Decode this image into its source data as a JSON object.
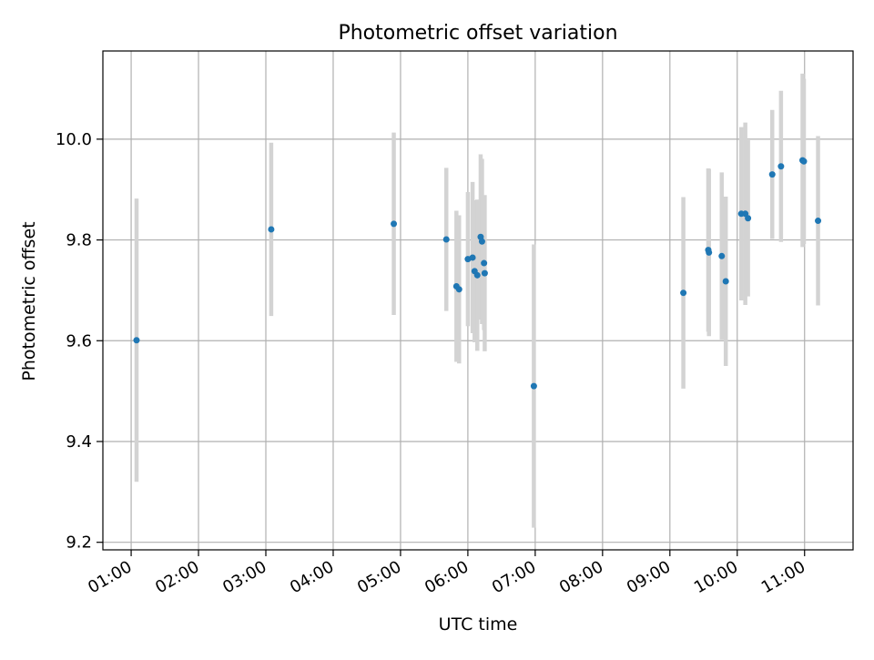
{
  "chart_data": {
    "type": "scatter",
    "title": "Photometric offset variation",
    "xlabel": "UTC time",
    "ylabel": "Photometric offset",
    "xlim": [
      0.58,
      11.72
    ],
    "ylim": [
      9.185,
      10.175
    ],
    "grid": true,
    "x_ticks": [
      1,
      2,
      3,
      4,
      5,
      6,
      7,
      8,
      9,
      10,
      11
    ],
    "x_tick_labels": [
      "01:00",
      "02:00",
      "03:00",
      "04:00",
      "05:00",
      "06:00",
      "07:00",
      "08:00",
      "09:00",
      "10:00",
      "11:00"
    ],
    "y_ticks": [
      9.2,
      9.4,
      9.6,
      9.8,
      10.0
    ],
    "y_tick_labels": [
      "9.2",
      "9.4",
      "9.6",
      "9.8",
      "10.0"
    ],
    "point_color": "#1f77b4",
    "errorbar_color": "#d3d3d3",
    "points": [
      {
        "x": 1.08,
        "y": 9.601,
        "err": 0.281
      },
      {
        "x": 3.08,
        "y": 9.821,
        "err": 0.172
      },
      {
        "x": 4.9,
        "y": 9.832,
        "err": 0.181
      },
      {
        "x": 5.68,
        "y": 9.801,
        "err": 0.142
      },
      {
        "x": 5.83,
        "y": 9.708,
        "err": 0.15
      },
      {
        "x": 5.87,
        "y": 9.702,
        "err": 0.147
      },
      {
        "x": 6.0,
        "y": 9.762,
        "err": 0.133
      },
      {
        "x": 6.07,
        "y": 9.765,
        "err": 0.15
      },
      {
        "x": 6.1,
        "y": 9.738,
        "err": 0.141
      },
      {
        "x": 6.14,
        "y": 9.73,
        "err": 0.15
      },
      {
        "x": 6.19,
        "y": 9.806,
        "err": 0.164
      },
      {
        "x": 6.21,
        "y": 9.797,
        "err": 0.164
      },
      {
        "x": 6.24,
        "y": 9.754,
        "err": 0.133
      },
      {
        "x": 6.25,
        "y": 9.734,
        "err": 0.155
      },
      {
        "x": 6.98,
        "y": 9.51,
        "err": 0.281
      },
      {
        "x": 9.2,
        "y": 9.695,
        "err": 0.19
      },
      {
        "x": 9.57,
        "y": 9.78,
        "err": 0.162
      },
      {
        "x": 9.58,
        "y": 9.775,
        "err": 0.166
      },
      {
        "x": 9.77,
        "y": 9.768,
        "err": 0.166
      },
      {
        "x": 9.83,
        "y": 9.718,
        "err": 0.168
      },
      {
        "x": 10.06,
        "y": 9.852,
        "err": 0.172
      },
      {
        "x": 10.12,
        "y": 9.852,
        "err": 0.181
      },
      {
        "x": 10.16,
        "y": 9.843,
        "err": 0.155
      },
      {
        "x": 10.52,
        "y": 9.93,
        "err": 0.128
      },
      {
        "x": 10.65,
        "y": 9.946,
        "err": 0.15
      },
      {
        "x": 10.97,
        "y": 9.958,
        "err": 0.172
      },
      {
        "x": 10.99,
        "y": 9.956,
        "err": 0.164
      },
      {
        "x": 11.2,
        "y": 9.838,
        "err": 0.168
      }
    ]
  }
}
